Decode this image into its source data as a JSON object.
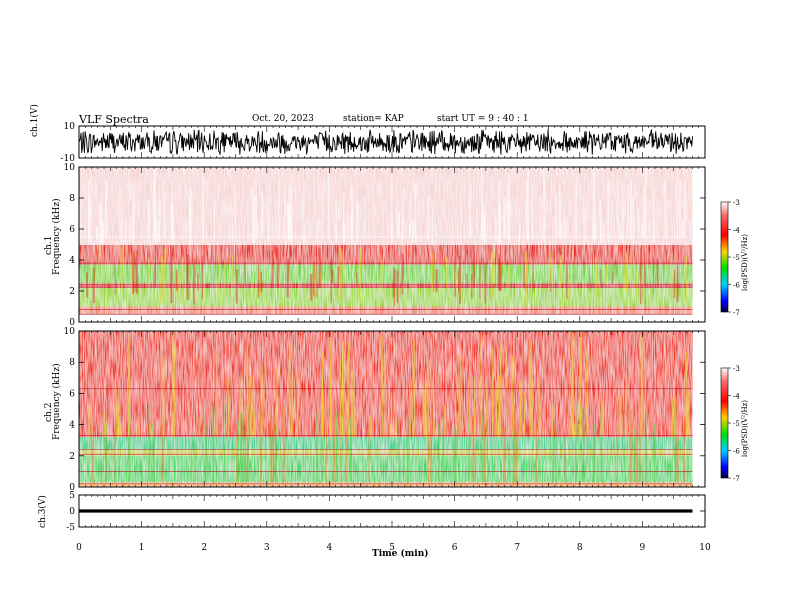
{
  "header": {
    "title": "VLF Spectra",
    "date": "Oct. 20, 2023",
    "station": "station= KAP",
    "start": "start  UT =   9 : 40 : 1"
  },
  "chart_data": [
    {
      "type": "line",
      "panel": "ch1-waveform",
      "ylabel": "ch.1(V)",
      "ylim": [
        -10,
        10
      ],
      "yticks": [
        "10",
        "-10"
      ],
      "xlim": [
        0,
        9.8
      ],
      "note_amplitude_range": [
        -8,
        8
      ]
    },
    {
      "type": "heatmap",
      "panel": "ch1-spectrogram",
      "ylabel_line1": "ch.1",
      "ylabel_line2": "Frequency (kHz)",
      "ylim": [
        0,
        10
      ],
      "yticks": [
        "0",
        "2",
        "4",
        "6",
        "8",
        "10"
      ],
      "xlim": [
        0,
        9.8
      ],
      "bands": [
        {
          "from": 0,
          "to": 0.5,
          "color": "#ffffff"
        },
        {
          "from": 0.5,
          "to": 1.0,
          "color": "#f08a70"
        },
        {
          "from": 1.0,
          "to": 2.2,
          "color": "#9cd83a"
        },
        {
          "from": 2.2,
          "to": 2.5,
          "color": "#e13030"
        },
        {
          "from": 2.5,
          "to": 3.7,
          "color": "#7ad640"
        },
        {
          "from": 3.7,
          "to": 5.0,
          "color": "#e8342a"
        },
        {
          "from": 5.0,
          "to": 10.0,
          "color": "#f7d6d6"
        }
      ],
      "colorbar": {
        "label": "log(PSD)(V²/Hz)",
        "ticks": [
          "-3",
          "-4",
          "-5",
          "-6",
          "-7"
        ]
      }
    },
    {
      "type": "heatmap",
      "panel": "ch2-spectrogram",
      "ylabel_line1": "ch.2",
      "ylabel_line2": "Frequency (kHz)",
      "ylim": [
        0,
        10
      ],
      "yticks": [
        "0",
        "2",
        "4",
        "6",
        "8",
        "10"
      ],
      "xlim": [
        0,
        9.8
      ],
      "bands": [
        {
          "from": 0,
          "to": 0.3,
          "color": "#ffb35a"
        },
        {
          "from": 0.3,
          "to": 2.0,
          "color": "#4fd66a"
        },
        {
          "from": 2.0,
          "to": 2.4,
          "color": "#c9d33a"
        },
        {
          "from": 2.4,
          "to": 3.2,
          "color": "#3ecf8c"
        },
        {
          "from": 3.2,
          "to": 10.0,
          "color": "#ef3a2c"
        }
      ],
      "colorbar": {
        "label": "log(PSD)(V²/Hz)",
        "ticks": [
          "-3",
          "-4",
          "-5",
          "-6",
          "-7"
        ]
      }
    },
    {
      "type": "area",
      "panel": "ch3-signal",
      "ylabel": "ch.3(V)",
      "ylim": [
        -5,
        5
      ],
      "yticks": [
        "5",
        "0",
        "-5"
      ],
      "xlim": [
        0,
        9.8
      ],
      "band": [
        -0.5,
        0.5
      ]
    }
  ],
  "xaxis": {
    "label": "Time (min)",
    "ticks": [
      "0",
      "1",
      "2",
      "3",
      "4",
      "5",
      "6",
      "7",
      "8",
      "9",
      "10"
    ]
  },
  "colors": {
    "red": "#e8342a",
    "green": "#56d040",
    "yellow": "#e7df2a",
    "colorbar_stops": [
      "#ffffff",
      "#ff0000",
      "#ffff00",
      "#00ff00",
      "#00ffff",
      "#0000ff",
      "#00004a"
    ]
  }
}
